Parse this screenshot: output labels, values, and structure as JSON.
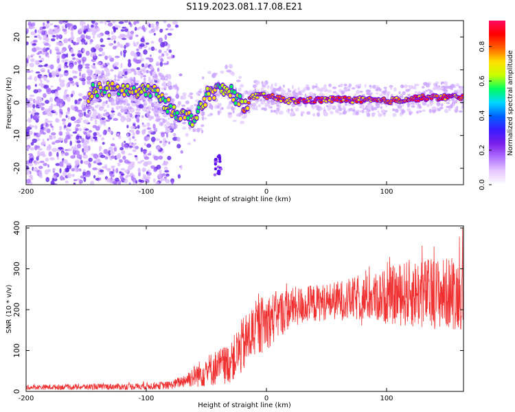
{
  "title": "S119.2023.081.17.08.E21",
  "spectrogram": {
    "type": "heatmap",
    "xlabel": "Height of straight line (km)",
    "ylabel": "Frequency (Hz)",
    "xlim": [
      -200,
      164
    ],
    "ylim": [
      -25,
      25
    ],
    "xticks": [
      -200,
      -100,
      0,
      100
    ],
    "yticks": [
      -20,
      -10,
      0,
      10,
      20
    ],
    "colorbar": {
      "label": "Normalized spectral amplitude",
      "range": [
        0,
        0.95
      ],
      "ticks": [
        0.0,
        0.2,
        0.4,
        0.6,
        0.8
      ],
      "stops": [
        "#ffffff",
        "#e6c8ff",
        "#b070ff",
        "#7b1fe8",
        "#3a1cff",
        "#0060ff",
        "#00d8ff",
        "#00ff60",
        "#c8ff00",
        "#ffe000",
        "#ff6000",
        "#ff0000",
        "#ff0a64"
      ]
    },
    "ridge": [
      {
        "x": -145,
        "y": 4
      },
      {
        "x": -120,
        "y": 4
      },
      {
        "x": -105,
        "y": 3
      },
      {
        "x": -95,
        "y": 4
      },
      {
        "x": -85,
        "y": 0
      },
      {
        "x": -78,
        "y": -2
      },
      {
        "x": -70,
        "y": -4
      },
      {
        "x": -60,
        "y": -5
      },
      {
        "x": -55,
        "y": -2
      },
      {
        "x": -48,
        "y": 3
      },
      {
        "x": -38,
        "y": 4
      },
      {
        "x": -28,
        "y": 3
      },
      {
        "x": -20,
        "y": -1
      },
      {
        "x": -10,
        "y": 2
      },
      {
        "x": 0,
        "y": 2
      },
      {
        "x": 20,
        "y": 0.5
      },
      {
        "x": 60,
        "y": 1
      },
      {
        "x": 100,
        "y": 0.5
      },
      {
        "x": 130,
        "y": 1.5
      },
      {
        "x": 164,
        "y": 1.8
      }
    ]
  },
  "snr": {
    "type": "line",
    "xlabel": "Height of straight line (km)",
    "ylabel": "SNR (10 * v/v)",
    "xlim": [
      -200,
      164
    ],
    "ylim": [
      0,
      405
    ],
    "xticks": [
      -200,
      -100,
      0,
      100
    ],
    "yticks": [
      0,
      100,
      200,
      300,
      400
    ],
    "color": "#f03030",
    "trend": [
      {
        "x": -200,
        "mean": 10,
        "spread": 6
      },
      {
        "x": -110,
        "mean": 12,
        "spread": 8
      },
      {
        "x": -80,
        "mean": 15,
        "spread": 10
      },
      {
        "x": -70,
        "mean": 25,
        "spread": 15
      },
      {
        "x": -50,
        "mean": 50,
        "spread": 40
      },
      {
        "x": -30,
        "mean": 70,
        "spread": 50
      },
      {
        "x": -20,
        "mean": 110,
        "spread": 70
      },
      {
        "x": -10,
        "mean": 150,
        "spread": 70
      },
      {
        "x": 0,
        "mean": 170,
        "spread": 70
      },
      {
        "x": 20,
        "mean": 205,
        "spread": 50
      },
      {
        "x": 50,
        "mean": 220,
        "spread": 45
      },
      {
        "x": 90,
        "mean": 230,
        "spread": 60
      },
      {
        "x": 120,
        "mean": 240,
        "spread": 85
      },
      {
        "x": 164,
        "mean": 240,
        "spread": 90
      }
    ]
  }
}
